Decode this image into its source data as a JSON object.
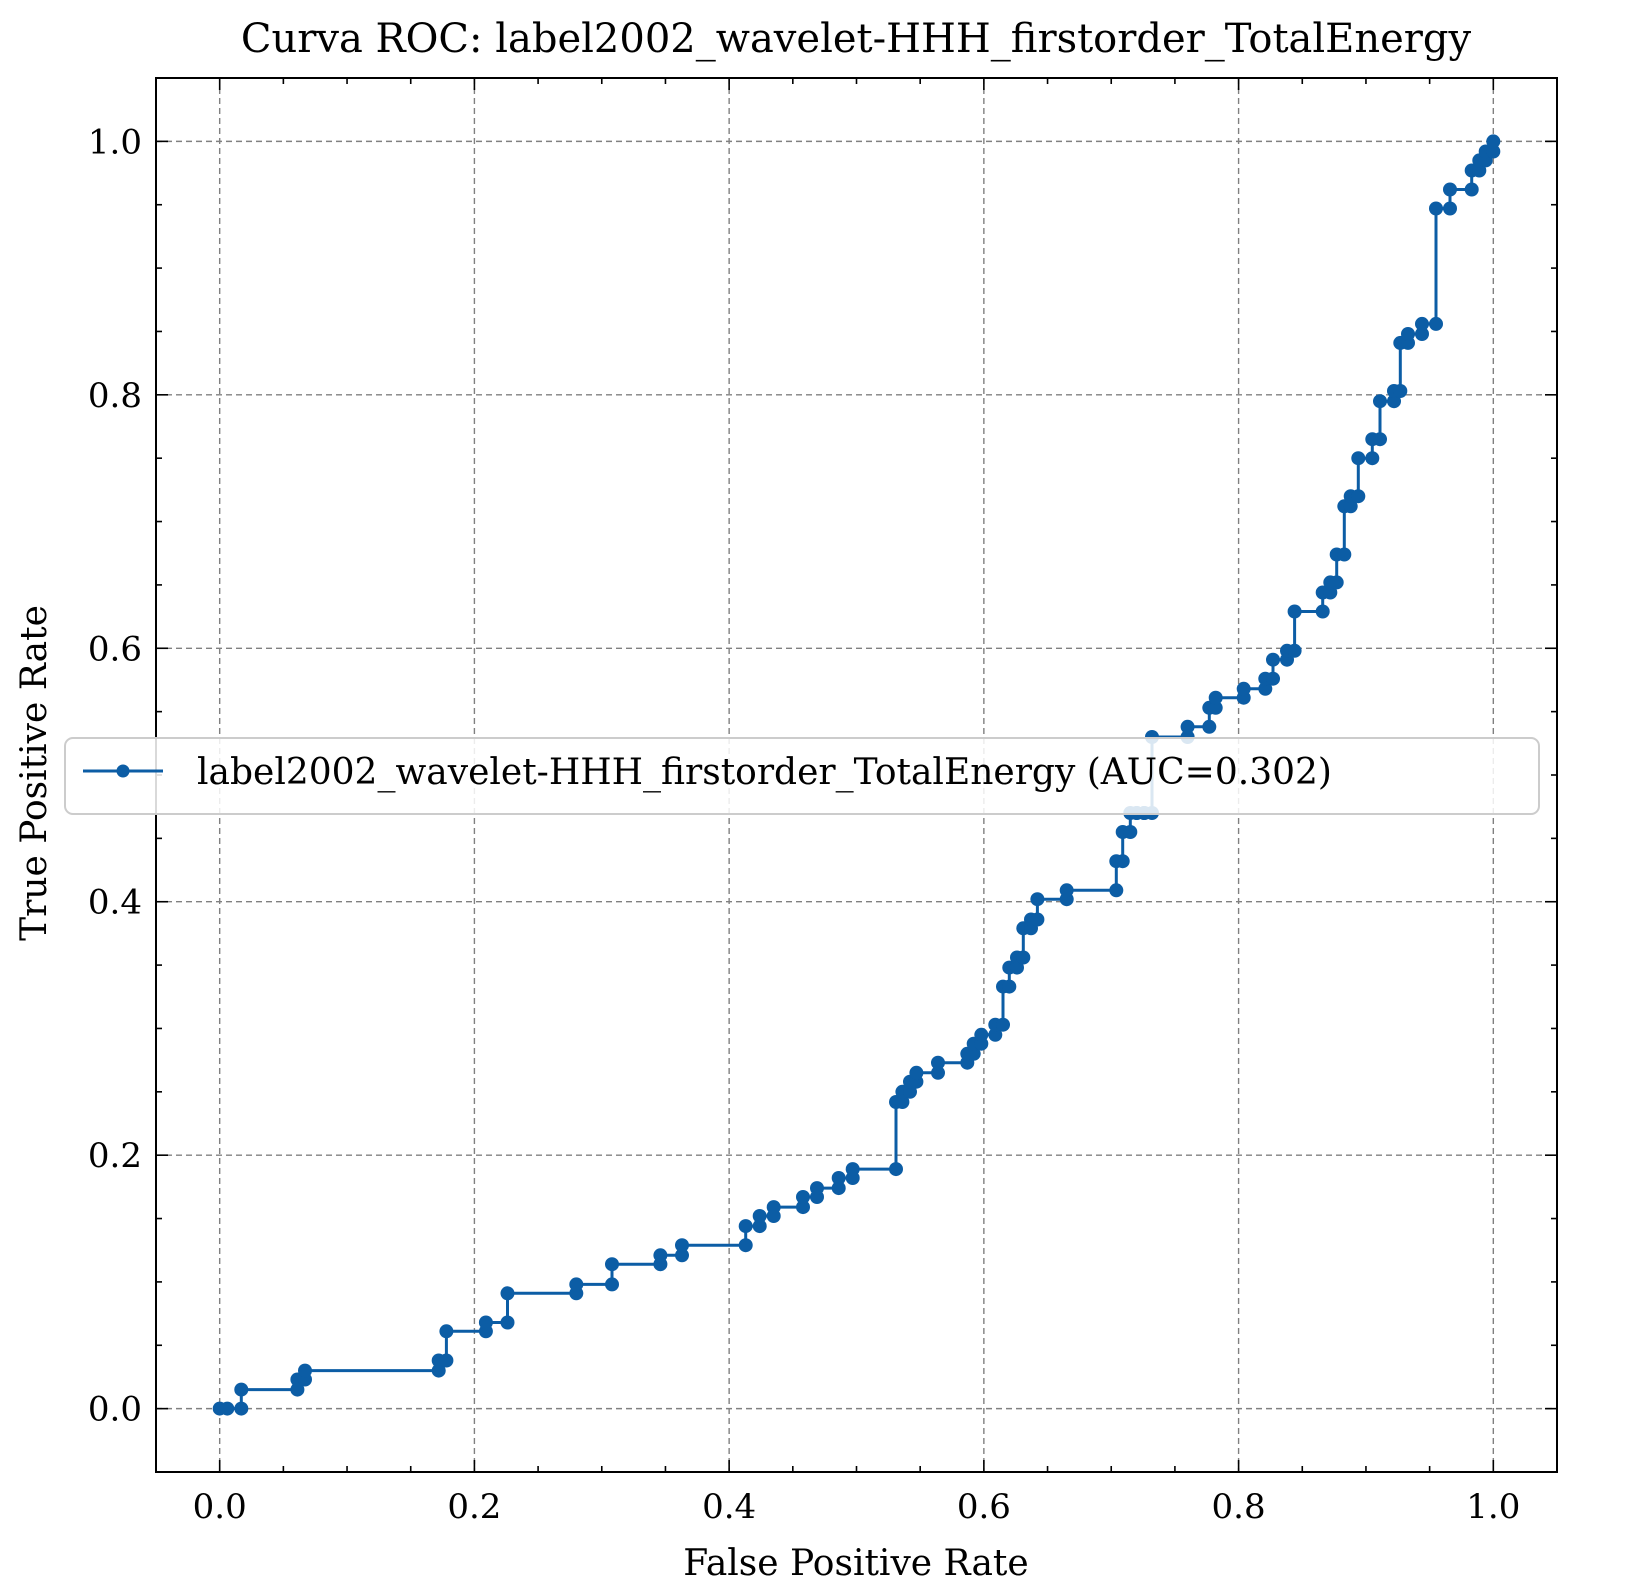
{
  "chart_data": {
    "type": "line",
    "title": "Curva ROC: label2002_wavelet-HHH_firstorder_TotalEnergy",
    "xlabel": "False Positive Rate",
    "ylabel": "True Positive Rate",
    "xlim": [
      -0.05,
      1.05
    ],
    "ylim": [
      -0.05,
      1.05
    ],
    "xticks": [
      0.0,
      0.2,
      0.4,
      0.6,
      0.8,
      1.0
    ],
    "yticks": [
      0.0,
      0.2,
      0.4,
      0.6,
      0.8,
      1.0
    ],
    "xtick_labels": [
      "0.0",
      "0.2",
      "0.4",
      "0.6",
      "0.8",
      "1.0"
    ],
    "ytick_labels": [
      "0.0",
      "0.2",
      "0.4",
      "0.6",
      "0.8",
      "1.0"
    ],
    "grid": true,
    "legend_position": "center",
    "color": "#0C5DA5",
    "series": [
      {
        "name": "label2002_wavelet-HHH_firstorder_TotalEnergy (AUC=0.302)",
        "x": [
          0.0,
          0.006,
          0.017,
          0.017,
          0.061,
          0.061,
          0.067,
          0.067,
          0.172,
          0.172,
          0.178,
          0.178,
          0.209,
          0.209,
          0.226,
          0.226,
          0.28,
          0.28,
          0.308,
          0.308,
          0.346,
          0.346,
          0.363,
          0.363,
          0.413,
          0.413,
          0.424,
          0.424,
          0.435,
          0.435,
          0.458,
          0.458,
          0.469,
          0.469,
          0.486,
          0.486,
          0.497,
          0.497,
          0.531,
          0.531,
          0.536,
          0.536,
          0.542,
          0.542,
          0.547,
          0.547,
          0.564,
          0.564,
          0.587,
          0.587,
          0.592,
          0.592,
          0.598,
          0.598,
          0.609,
          0.609,
          0.615,
          0.615,
          0.62,
          0.62,
          0.626,
          0.626,
          0.631,
          0.631,
          0.637,
          0.637,
          0.642,
          0.642,
          0.665,
          0.665,
          0.704,
          0.704,
          0.709,
          0.709,
          0.715,
          0.715,
          0.72,
          0.72,
          0.726,
          0.726,
          0.732,
          0.732,
          0.76,
          0.76,
          0.777,
          0.777,
          0.782,
          0.782,
          0.804,
          0.804,
          0.821,
          0.821,
          0.827,
          0.827,
          0.838,
          0.838,
          0.844,
          0.844,
          0.866,
          0.866,
          0.872,
          0.872,
          0.877,
          0.877,
          0.883,
          0.883,
          0.888,
          0.888,
          0.894,
          0.894,
          0.905,
          0.905,
          0.911,
          0.911,
          0.922,
          0.922,
          0.927,
          0.927,
          0.933,
          0.933,
          0.944,
          0.944,
          0.955,
          0.955,
          0.966,
          0.966,
          0.983,
          0.983,
          0.989,
          0.989,
          0.994,
          0.994,
          1.0,
          1.0
        ],
        "y": [
          0.0,
          0.0,
          0.0,
          0.015,
          0.015,
          0.023,
          0.023,
          0.03,
          0.03,
          0.038,
          0.038,
          0.061,
          0.061,
          0.068,
          0.068,
          0.091,
          0.091,
          0.098,
          0.098,
          0.114,
          0.114,
          0.121,
          0.121,
          0.129,
          0.129,
          0.144,
          0.144,
          0.152,
          0.152,
          0.159,
          0.159,
          0.167,
          0.167,
          0.174,
          0.174,
          0.182,
          0.182,
          0.189,
          0.189,
          0.242,
          0.242,
          0.25,
          0.25,
          0.258,
          0.258,
          0.265,
          0.265,
          0.273,
          0.273,
          0.28,
          0.28,
          0.288,
          0.288,
          0.295,
          0.295,
          0.303,
          0.303,
          0.333,
          0.333,
          0.348,
          0.348,
          0.356,
          0.356,
          0.379,
          0.379,
          0.386,
          0.386,
          0.402,
          0.402,
          0.409,
          0.409,
          0.432,
          0.432,
          0.455,
          0.455,
          0.47,
          0.47,
          0.47,
          0.47,
          0.47,
          0.47,
          0.53,
          0.53,
          0.538,
          0.538,
          0.553,
          0.553,
          0.561,
          0.561,
          0.568,
          0.568,
          0.576,
          0.576,
          0.591,
          0.591,
          0.598,
          0.598,
          0.629,
          0.629,
          0.644,
          0.644,
          0.652,
          0.652,
          0.674,
          0.674,
          0.712,
          0.712,
          0.72,
          0.72,
          0.75,
          0.75,
          0.765,
          0.765,
          0.795,
          0.795,
          0.803,
          0.803,
          0.841,
          0.841,
          0.848,
          0.848,
          0.856,
          0.856,
          0.947,
          0.947,
          0.962,
          0.962,
          0.977,
          0.977,
          0.985,
          0.985,
          0.992,
          0.992,
          1.0
        ]
      }
    ]
  }
}
